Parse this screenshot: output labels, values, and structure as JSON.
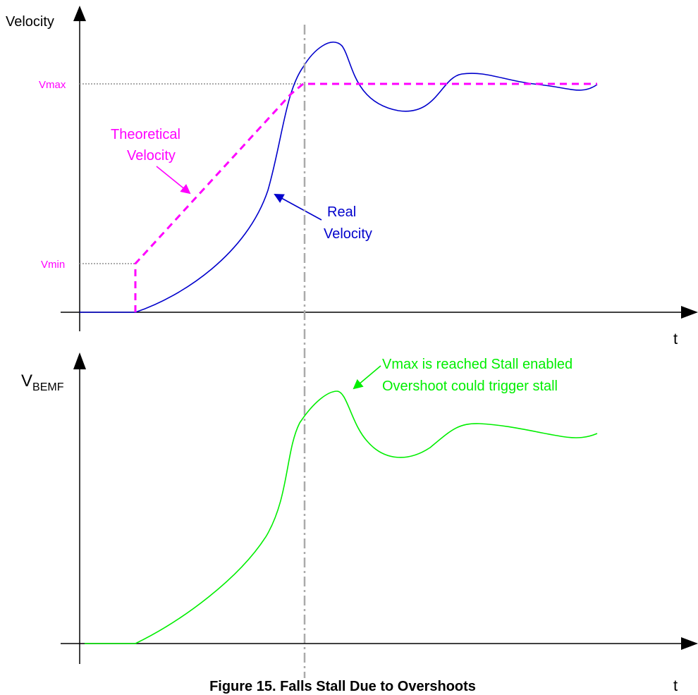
{
  "top_plot": {
    "y_axis_label": "Velocity",
    "x_axis_label": "t",
    "vmax_label": "Vmax",
    "vmin_label": "Vmin",
    "theoretical_label_line1": "Theoretical",
    "theoretical_label_line2": "Velocity",
    "real_label_line1": "Real",
    "real_label_line2": "Velocity"
  },
  "bottom_plot": {
    "y_axis_label_main": "V",
    "y_axis_label_sub": "BEMF",
    "x_axis_label": "t",
    "annotation_line1": "Vmax is reached Stall enabled",
    "annotation_line2": "Overshoot could trigger stall"
  },
  "caption": "Figure 15. Falls Stall Due to Overshoots",
  "colors": {
    "theoretical": "#ff00ff",
    "real": "#0000cc",
    "bemf": "#00ee00",
    "axis": "#000000",
    "guide": "#aaaaaa"
  }
}
